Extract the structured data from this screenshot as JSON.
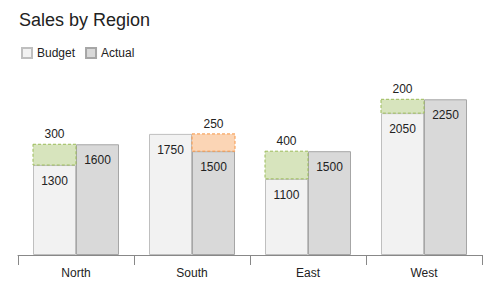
{
  "chart_data": {
    "type": "bar",
    "title": "Sales by Region",
    "categories": [
      "North",
      "South",
      "East",
      "West"
    ],
    "series": [
      {
        "name": "Budget",
        "color": "#f2f2f2",
        "values": [
          1300,
          1750,
          1100,
          2050
        ]
      },
      {
        "name": "Actual",
        "color": "#d9d9d9",
        "values": [
          1600,
          1500,
          1500,
          2250
        ]
      }
    ],
    "variance": {
      "values": [
        300,
        250,
        400,
        200
      ],
      "colors": [
        "#d7e4bd",
        "#fbd5b5",
        "#d7e4bd",
        "#d7e4bd"
      ]
    },
    "ylim": [
      0,
      2500
    ],
    "legend": "top-left",
    "data_labels": true,
    "tick_labels": "x",
    "grid": false
  }
}
